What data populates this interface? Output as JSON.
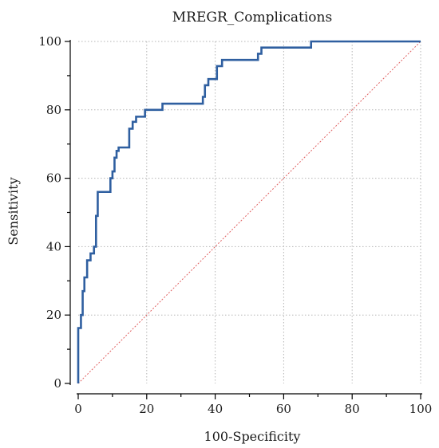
{
  "chart_data": {
    "type": "line",
    "title": "MREGR_Complications",
    "xlabel": "100-Specificity",
    "ylabel": "Sensitivity",
    "xlim": [
      0,
      100
    ],
    "ylim": [
      0,
      100
    ],
    "xticks": [
      "0",
      "20",
      "40",
      "60",
      "80",
      "100"
    ],
    "yticks": [
      "0",
      "20",
      "40",
      "60",
      "80",
      "100"
    ],
    "grid": true,
    "colors": {
      "roc": "#2f5fa0",
      "reference": "#e06060"
    },
    "series": [
      {
        "style": "step",
        "x": [
          0,
          0,
          0.8,
          0.8,
          1.3,
          1.3,
          1.8,
          1.8,
          2.6,
          2.6,
          3.6,
          3.6,
          4.6,
          4.6,
          5.2,
          5.2,
          5.7,
          5.7,
          6.8,
          6.8,
          9.4,
          9.4,
          10.0,
          10.0,
          10.6,
          10.6,
          11.2,
          11.2,
          11.8,
          11.8,
          14.9,
          14.9,
          15.9,
          15.9,
          16.9,
          16.9,
          19.5,
          19.5,
          21.5,
          21.5,
          24.6,
          24.6,
          36.4,
          36.4,
          37.0,
          37.0,
          38.0,
          38.0,
          39.5,
          39.5,
          40.5,
          40.5,
          42.0,
          42.0,
          52.5,
          52.5,
          53.5,
          53.5,
          68.0,
          68.0,
          100
        ],
        "y": [
          0,
          16.2,
          16.2,
          20.0,
          20.0,
          27.0,
          27.0,
          31.0,
          31.0,
          36.0,
          36.0,
          38.0,
          38.0,
          40.0,
          40.0,
          49.0,
          49.0,
          56.0,
          56.0,
          56.0,
          56.0,
          60.0,
          60.0,
          62.0,
          62.0,
          66.0,
          66.0,
          68.0,
          68.0,
          69.0,
          69.0,
          74.5,
          74.5,
          76.5,
          76.5,
          78.0,
          78.0,
          80.0,
          80.0,
          80.0,
          80.0,
          81.8,
          81.8,
          83.8,
          83.8,
          87.2,
          87.2,
          89.0,
          89.0,
          89.0,
          89.0,
          92.8,
          92.8,
          94.6,
          94.6,
          96.4,
          96.4,
          98.2,
          98.2,
          100,
          100
        ]
      },
      {
        "style": "diagonal",
        "x": [
          0,
          100
        ],
        "y": [
          0,
          100
        ]
      }
    ]
  }
}
